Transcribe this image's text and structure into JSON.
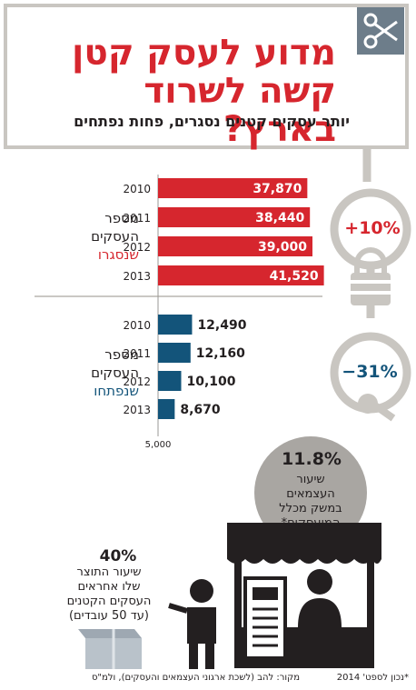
{
  "header": {
    "title_line1": "מדוע לעסק קטן",
    "title_line2": "קשה לשרוד בארץ?",
    "subtitle": "יותר עסקים קטנים נסגרים, פחות נפתחים"
  },
  "groups": {
    "closed": {
      "label_line1": "מספר",
      "label_line2": "העסקים",
      "label_line3": "שנסגרו",
      "change": "+10%"
    },
    "opened": {
      "label_line1": "מספר",
      "label_line2": "העסקים",
      "label_line3": "שנפתחו",
      "change": "−31%"
    }
  },
  "bubble": {
    "value": "11.8%",
    "text_line1": "שיעור",
    "text_line2": "העצמאים",
    "text_line3": "במשק מכלל",
    "text_line4": "המועסקים*"
  },
  "output": {
    "value": "40%",
    "text_line1": "שיעור התוצר",
    "text_line2": "שלו אחראים",
    "text_line3": "העסקים הקטנים",
    "text_line4": "(עד 50 עובדים)"
  },
  "footer": {
    "source": "מקור: להב (לשכת ארגוני העצמאים והעסקים), ולמ\"ס",
    "footnote": "*נכון לספט' 2014"
  },
  "colors": {
    "closed_bar": "#d6262e",
    "opened_bar": "#13547a",
    "accent_gray": "#c9c6c1"
  },
  "chart_data": [
    {
      "type": "bar",
      "orientation": "horizontal",
      "categories": [
        "2010",
        "2011",
        "2012",
        "2013"
      ],
      "values": [
        37870,
        38440,
        39000,
        41520
      ],
      "value_labels": [
        "37,870",
        "38,440",
        "39,000",
        "41,520"
      ]
    },
    {
      "type": "bar",
      "orientation": "horizontal",
      "categories": [
        "2010",
        "2011",
        "2012",
        "2013"
      ],
      "values": [
        12490,
        12160,
        10100,
        8670
      ],
      "value_labels": [
        "12,490",
        "12,160",
        "10,100",
        "8,670"
      ],
      "axis_tick_label": "5,000",
      "axis_tick_value": 5000
    }
  ]
}
